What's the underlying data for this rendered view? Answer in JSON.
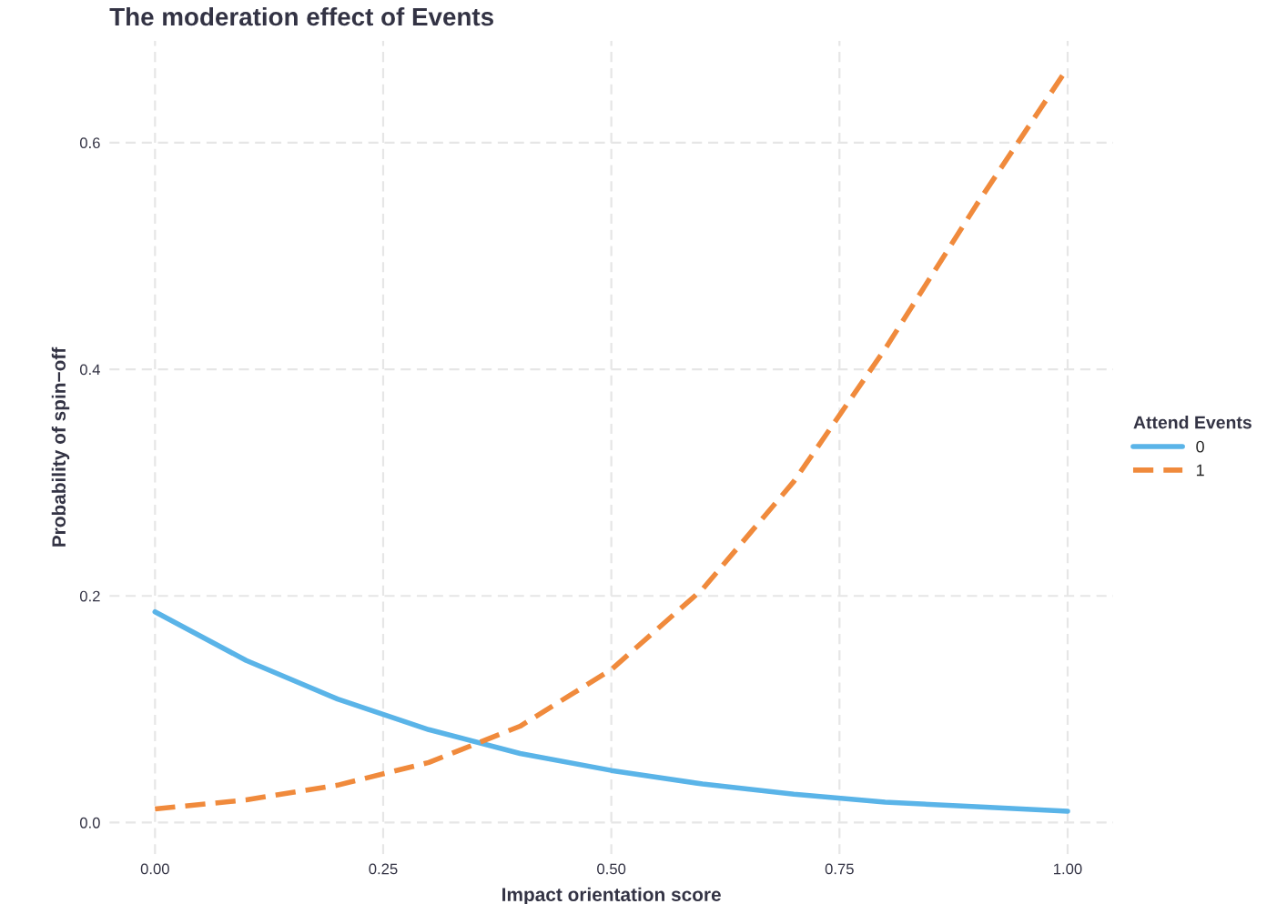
{
  "chart_data": {
    "type": "line",
    "title": "The moderation effect of Events",
    "xlabel": "Impact orientation score",
    "ylabel": "Probability of spin−off",
    "legend_title": "Attend Events",
    "x": [
      0,
      0.1,
      0.2,
      0.3,
      0.4,
      0.5,
      0.6,
      0.7,
      0.8,
      0.9,
      1.0
    ],
    "series": [
      {
        "name": "0",
        "color": "#5ab4e8",
        "line_style": "solid",
        "values": [
          0.186,
          0.143,
          0.109,
          0.082,
          0.061,
          0.046,
          0.034,
          0.025,
          0.018,
          0.014,
          0.01
        ]
      },
      {
        "name": "1",
        "color": "#f08a3c",
        "line_style": "dashed",
        "values": [
          0.012,
          0.02,
          0.033,
          0.053,
          0.085,
          0.135,
          0.206,
          0.301,
          0.418,
          0.545,
          0.666
        ]
      }
    ],
    "xlim": [
      -0.05,
      1.05
    ],
    "ylim": [
      -0.028,
      0.69
    ],
    "xticks": [
      {
        "value": 0,
        "label": "0.00"
      },
      {
        "value": 0.25,
        "label": "0.25"
      },
      {
        "value": 0.5,
        "label": "0.50"
      },
      {
        "value": 0.75,
        "label": "0.75"
      },
      {
        "value": 1.0,
        "label": "1.00"
      }
    ],
    "yticks": [
      {
        "value": 0,
        "label": "0.0"
      },
      {
        "value": 0.2,
        "label": "0.2"
      },
      {
        "value": 0.4,
        "label": "0.4"
      },
      {
        "value": 0.6,
        "label": "0.6"
      }
    ],
    "grid": true,
    "legend": "right"
  }
}
